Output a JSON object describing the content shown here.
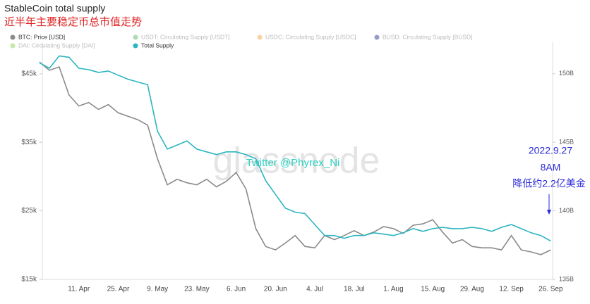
{
  "chart_data": {
    "type": "line",
    "title": "StableCoin total supply",
    "subtitle": "近半年主要稳定币总市值走势",
    "watermark": "glassnode",
    "credit": "Twitter @Phyrex_Ni",
    "annotations": [
      "2022.9.27",
      "8AM",
      "降低约2.2亿美金"
    ],
    "annotation_color": "#2a2ad8",
    "categories": [
      null,
      null,
      null,
      null,
      "11. Apr",
      null,
      null,
      null,
      "25. Apr",
      null,
      null,
      null,
      "9. May",
      null,
      null,
      null,
      "23. May",
      null,
      null,
      null,
      "6. Jun",
      null,
      null,
      null,
      "20. Jun",
      null,
      null,
      null,
      "4. Jul",
      null,
      null,
      null,
      "18. Jul",
      null,
      null,
      null,
      "1. Aug",
      null,
      null,
      null,
      "15. Aug",
      null,
      null,
      null,
      "29. Aug",
      null,
      null,
      null,
      "12. Sep",
      null,
      null,
      null,
      "26. Sep"
    ],
    "series": [
      {
        "name": "BTC: Price [USD]",
        "color": "#8a8a8a",
        "visible": true,
        "values": [
          46700,
          45500,
          46000,
          41900,
          40300,
          40800,
          39800,
          40500,
          39300,
          38800,
          38300,
          37500,
          32600,
          28800,
          29600,
          29100,
          28800,
          29600,
          28500,
          29300,
          30600,
          28200,
          22400,
          19800,
          19300,
          20300,
          21400,
          19800,
          19600,
          21400,
          20800,
          21400,
          22100,
          21400,
          21900,
          22700,
          22400,
          21700,
          22900,
          23100,
          23700,
          21900,
          20300,
          20800,
          19800,
          19600,
          19600,
          19300,
          21400,
          19300,
          19000,
          18600,
          19300
        ]
      },
      {
        "name": "USDT: Circulating Supply [USDT]",
        "color": "#4caf50",
        "visible": false
      },
      {
        "name": "USDC: Circulating Supply [USDC]",
        "color": "#f0a030",
        "visible": false
      },
      {
        "name": "BUSD: Circulating Supply [BUSD]",
        "color": "#1a237e",
        "visible": false
      },
      {
        "name": "DAI: Circulating Supply [DAI]",
        "color": "#7ccc3a",
        "visible": false
      },
      {
        "name": "Total Supply",
        "color": "#2bb5c0",
        "visible": true,
        "axis": "y2",
        "values": [
          150.8,
          150.4,
          151.3,
          151.2,
          150.4,
          150.3,
          150.1,
          150.2,
          149.9,
          149.6,
          149.4,
          149.2,
          145.8,
          144.5,
          144.8,
          145.1,
          144.5,
          144.3,
          144.1,
          144.3,
          144.3,
          144.1,
          143.8,
          142.2,
          141.2,
          140.2,
          139.9,
          139.8,
          139.0,
          138.2,
          138.2,
          138.0,
          138.2,
          138.2,
          138.4,
          138.3,
          138.2,
          138.4,
          138.7,
          138.5,
          138.7,
          138.8,
          138.7,
          138.7,
          138.8,
          138.7,
          138.5,
          138.8,
          139.0,
          138.7,
          138.4,
          138.2,
          137.8
        ]
      }
    ],
    "ylim": [
      15000,
      49600
    ],
    "yticks": [
      {
        "value": 15000,
        "label": "$15k"
      },
      {
        "value": 25000,
        "label": "$25k"
      },
      {
        "value": 35000,
        "label": "$35k"
      },
      {
        "value": 45000,
        "label": "$45k"
      }
    ],
    "y2lim": [
      135,
      152.3
    ],
    "y2ticks": [
      {
        "value": 135,
        "label": "135B"
      },
      {
        "value": 140,
        "label": "140B"
      },
      {
        "value": 145,
        "label": "145B"
      },
      {
        "value": 150,
        "label": "150B"
      }
    ]
  }
}
